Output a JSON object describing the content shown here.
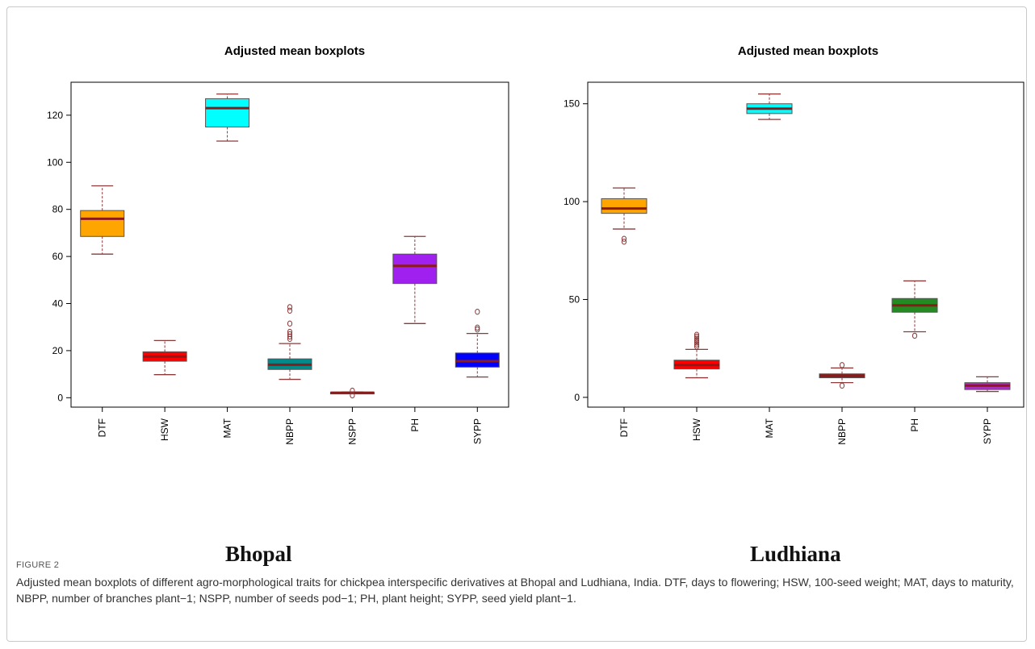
{
  "figure_label": "FIGURE 2",
  "caption": "Adjusted mean boxplots of different agro-morphological traits for chickpea interspecific derivatives at Bhopal and Ludhiana, India. DTF, days to flowering; HSW, 100-seed weight; MAT, days to maturity, NBPP, number of branches plant−1; NSPP, number of seeds pod−1; PH, plant height; SYPP, seed yield plant−1.",
  "place_labels": {
    "left": "Bhopal",
    "right": "Ludhiana"
  },
  "chart_data": [
    {
      "type": "boxplot",
      "title": "Adjusted mean boxplots",
      "location": "Bhopal",
      "ylim": [
        -4,
        134
      ],
      "yticks": [
        0,
        20,
        40,
        60,
        80,
        100,
        120
      ],
      "categories": [
        "DTF",
        "HSW",
        "MAT",
        "NBPP",
        "NSPP",
        "PH",
        "SYPP"
      ],
      "boxes": [
        {
          "name": "DTF",
          "whisker_low": 61,
          "q1": 68.5,
          "median": 76,
          "q3": 79.5,
          "whisker_high": 90,
          "outliers": [],
          "color": "#ffa500"
        },
        {
          "name": "HSW",
          "whisker_low": 9.8,
          "q1": 15.5,
          "median": 17.5,
          "q3": 19.5,
          "whisker_high": 24.3,
          "outliers": [],
          "color": "#ff0000"
        },
        {
          "name": "MAT",
          "whisker_low": 109,
          "q1": 115,
          "median": 123,
          "q3": 127,
          "whisker_high": 129,
          "outliers": [],
          "color": "#00ffff"
        },
        {
          "name": "NBPP",
          "whisker_low": 7.8,
          "q1": 12,
          "median": 14,
          "q3": 16.5,
          "whisker_high": 23,
          "outliers": [
            25,
            26,
            27,
            28,
            31.5,
            37,
            38.5
          ],
          "color": "#008b8b"
        },
        {
          "name": "NSPP",
          "whisker_low": 1.8,
          "q1": 1.9,
          "median": 2.1,
          "q3": 2.3,
          "whisker_high": 2.4,
          "outliers": [
            1,
            3
          ],
          "color": "#8b1a1a"
        },
        {
          "name": "PH",
          "whisker_low": 31.5,
          "q1": 48.5,
          "median": 56,
          "q3": 61,
          "whisker_high": 68.5,
          "outliers": [],
          "color": "#a020f0"
        },
        {
          "name": "SYPP",
          "whisker_low": 8.8,
          "q1": 13,
          "median": 15.5,
          "q3": 19,
          "whisker_high": 27.3,
          "outliers": [
            29,
            29.8,
            36.5
          ],
          "color": "#0000ff"
        }
      ]
    },
    {
      "type": "boxplot",
      "title": "Adjusted mean boxplots",
      "location": "Ludhiana",
      "ylim": [
        -5,
        161
      ],
      "yticks": [
        0,
        50,
        100,
        150
      ],
      "categories": [
        "DTF",
        "HSW",
        "MAT",
        "NBPP",
        "PH",
        "SYPP"
      ],
      "boxes": [
        {
          "name": "DTF",
          "whisker_low": 86,
          "q1": 94,
          "median": 96.5,
          "q3": 101.5,
          "whisker_high": 107,
          "outliers": [
            79.5,
            81
          ],
          "color": "#ffa500"
        },
        {
          "name": "HSW",
          "whisker_low": 10,
          "q1": 14.5,
          "median": 16.5,
          "q3": 19,
          "whisker_high": 24.5,
          "outliers": [
            26,
            27,
            28,
            29,
            30,
            31,
            32
          ],
          "color": "#ff0000"
        },
        {
          "name": "MAT",
          "whisker_low": 142,
          "q1": 145,
          "median": 147.5,
          "q3": 150,
          "whisker_high": 155,
          "outliers": [],
          "color": "#00ffff"
        },
        {
          "name": "NBPP",
          "whisker_low": 7.5,
          "q1": 10,
          "median": 11,
          "q3": 12,
          "whisker_high": 15,
          "outliers": [
            6,
            16.5
          ],
          "color": "#8b1a1a"
        },
        {
          "name": "PH",
          "whisker_low": 33.5,
          "q1": 43.5,
          "median": 47,
          "q3": 50.5,
          "whisker_high": 59.5,
          "outliers": [
            31.5
          ],
          "color": "#228b22"
        },
        {
          "name": "SYPP",
          "whisker_low": 3,
          "q1": 4,
          "median": 6,
          "q3": 7.5,
          "whisker_high": 10.5,
          "outliers": [],
          "color": "#b02cc8"
        }
      ]
    }
  ]
}
